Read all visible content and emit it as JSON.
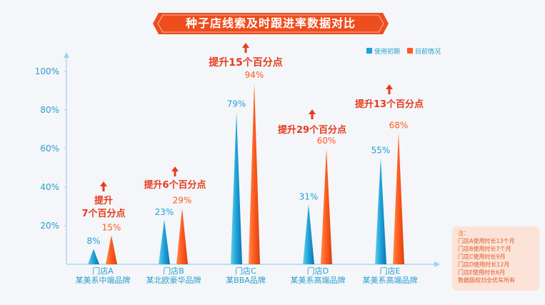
{
  "title": "种子店线索及时跟进率数据对比",
  "legend": [
    "使用初期",
    "目前情况"
  ],
  "colors": {
    "series_initial": "#1fa2d6",
    "series_current": "#ff5a1f",
    "annotation": "#e63b1c",
    "banner": "#ee4d1e"
  },
  "chart_data": {
    "type": "bar",
    "categories": [
      "门店A",
      "门店B",
      "门店C",
      "门店D",
      "门店E"
    ],
    "category_subtitles": [
      "某美系中端品牌",
      "某北欧豪华品牌",
      "某BBA品牌",
      "某美系高端品牌",
      "某美系高端品牌"
    ],
    "series": [
      {
        "name": "使用初期",
        "values": [
          8,
          23,
          79,
          31,
          55
        ]
      },
      {
        "name": "目前情况",
        "values": [
          15,
          29,
          94,
          60,
          68
        ]
      }
    ],
    "value_labels": {
      "使用初期": [
        "8%",
        "23%",
        "79%",
        "31%",
        "55%"
      ],
      "目前情况": [
        "15%",
        "29%",
        "94%",
        "60%",
        "68%"
      ]
    },
    "yticks": [
      "20%",
      "40%",
      "60%",
      "80%",
      "100%"
    ],
    "ytick_values": [
      20,
      40,
      60,
      80,
      100
    ],
    "ylim": [
      0,
      110
    ],
    "legend_position": "top-right",
    "annotations": [
      {
        "category": "门店A",
        "lines": [
          "提升",
          "7个百分点"
        ]
      },
      {
        "category": "门店B",
        "lines": [
          "提升6个百分点"
        ]
      },
      {
        "category": "门店C",
        "lines": [
          "提升15个百分点"
        ]
      },
      {
        "category": "门店D",
        "lines": [
          "提升29个百分点"
        ]
      },
      {
        "category": "门店E",
        "lines": [
          "提升13个百分点"
        ]
      }
    ]
  },
  "notes": [
    "注：",
    "门店A使用时长13个月",
    "门店B使用时长7个月",
    "门店C使用时长9月",
    "门店D使用时长12月",
    "门店E使用时长6月",
    "数据版权归全优车所有"
  ]
}
